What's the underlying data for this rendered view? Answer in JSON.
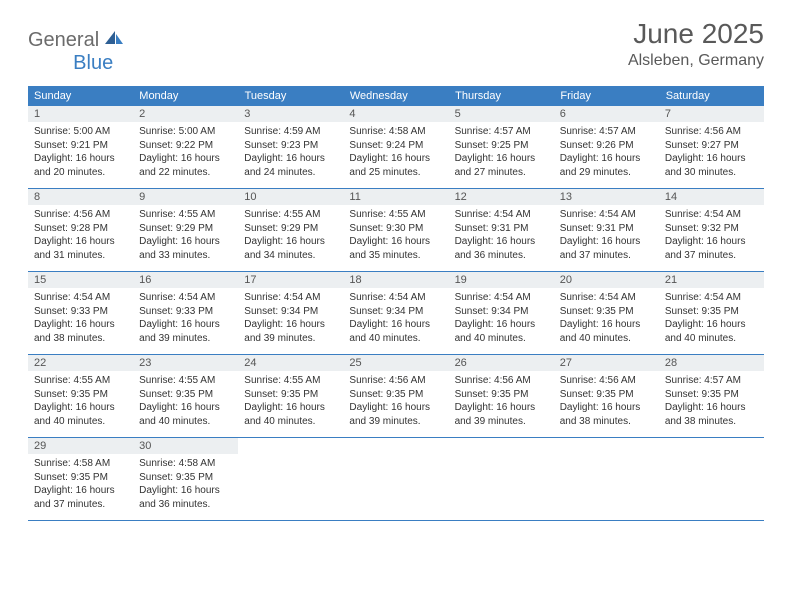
{
  "logo": {
    "text1": "General",
    "text2": "Blue"
  },
  "title": "June 2025",
  "location": "Alsleben, Germany",
  "colors": {
    "header_bg": "#3a7ec2",
    "header_text": "#ffffff",
    "daynum_bg": "#eceff1",
    "border": "#3a7ec2",
    "title_color": "#595959",
    "logo_gray": "#6b6b6b",
    "logo_blue": "#3a7ec2"
  },
  "weekdays": [
    "Sunday",
    "Monday",
    "Tuesday",
    "Wednesday",
    "Thursday",
    "Friday",
    "Saturday"
  ],
  "days": [
    {
      "n": "1",
      "sr": "5:00 AM",
      "ss": "9:21 PM",
      "dl": "16 hours and 20 minutes."
    },
    {
      "n": "2",
      "sr": "5:00 AM",
      "ss": "9:22 PM",
      "dl": "16 hours and 22 minutes."
    },
    {
      "n": "3",
      "sr": "4:59 AM",
      "ss": "9:23 PM",
      "dl": "16 hours and 24 minutes."
    },
    {
      "n": "4",
      "sr": "4:58 AM",
      "ss": "9:24 PM",
      "dl": "16 hours and 25 minutes."
    },
    {
      "n": "5",
      "sr": "4:57 AM",
      "ss": "9:25 PM",
      "dl": "16 hours and 27 minutes."
    },
    {
      "n": "6",
      "sr": "4:57 AM",
      "ss": "9:26 PM",
      "dl": "16 hours and 29 minutes."
    },
    {
      "n": "7",
      "sr": "4:56 AM",
      "ss": "9:27 PM",
      "dl": "16 hours and 30 minutes."
    },
    {
      "n": "8",
      "sr": "4:56 AM",
      "ss": "9:28 PM",
      "dl": "16 hours and 31 minutes."
    },
    {
      "n": "9",
      "sr": "4:55 AM",
      "ss": "9:29 PM",
      "dl": "16 hours and 33 minutes."
    },
    {
      "n": "10",
      "sr": "4:55 AM",
      "ss": "9:29 PM",
      "dl": "16 hours and 34 minutes."
    },
    {
      "n": "11",
      "sr": "4:55 AM",
      "ss": "9:30 PM",
      "dl": "16 hours and 35 minutes."
    },
    {
      "n": "12",
      "sr": "4:54 AM",
      "ss": "9:31 PM",
      "dl": "16 hours and 36 minutes."
    },
    {
      "n": "13",
      "sr": "4:54 AM",
      "ss": "9:31 PM",
      "dl": "16 hours and 37 minutes."
    },
    {
      "n": "14",
      "sr": "4:54 AM",
      "ss": "9:32 PM",
      "dl": "16 hours and 37 minutes."
    },
    {
      "n": "15",
      "sr": "4:54 AM",
      "ss": "9:33 PM",
      "dl": "16 hours and 38 minutes."
    },
    {
      "n": "16",
      "sr": "4:54 AM",
      "ss": "9:33 PM",
      "dl": "16 hours and 39 minutes."
    },
    {
      "n": "17",
      "sr": "4:54 AM",
      "ss": "9:34 PM",
      "dl": "16 hours and 39 minutes."
    },
    {
      "n": "18",
      "sr": "4:54 AM",
      "ss": "9:34 PM",
      "dl": "16 hours and 40 minutes."
    },
    {
      "n": "19",
      "sr": "4:54 AM",
      "ss": "9:34 PM",
      "dl": "16 hours and 40 minutes."
    },
    {
      "n": "20",
      "sr": "4:54 AM",
      "ss": "9:35 PM",
      "dl": "16 hours and 40 minutes."
    },
    {
      "n": "21",
      "sr": "4:54 AM",
      "ss": "9:35 PM",
      "dl": "16 hours and 40 minutes."
    },
    {
      "n": "22",
      "sr": "4:55 AM",
      "ss": "9:35 PM",
      "dl": "16 hours and 40 minutes."
    },
    {
      "n": "23",
      "sr": "4:55 AM",
      "ss": "9:35 PM",
      "dl": "16 hours and 40 minutes."
    },
    {
      "n": "24",
      "sr": "4:55 AM",
      "ss": "9:35 PM",
      "dl": "16 hours and 40 minutes."
    },
    {
      "n": "25",
      "sr": "4:56 AM",
      "ss": "9:35 PM",
      "dl": "16 hours and 39 minutes."
    },
    {
      "n": "26",
      "sr": "4:56 AM",
      "ss": "9:35 PM",
      "dl": "16 hours and 39 minutes."
    },
    {
      "n": "27",
      "sr": "4:56 AM",
      "ss": "9:35 PM",
      "dl": "16 hours and 38 minutes."
    },
    {
      "n": "28",
      "sr": "4:57 AM",
      "ss": "9:35 PM",
      "dl": "16 hours and 38 minutes."
    },
    {
      "n": "29",
      "sr": "4:58 AM",
      "ss": "9:35 PM",
      "dl": "16 hours and 37 minutes."
    },
    {
      "n": "30",
      "sr": "4:58 AM",
      "ss": "9:35 PM",
      "dl": "16 hours and 36 minutes."
    }
  ],
  "labels": {
    "sunrise": "Sunrise: ",
    "sunset": "Sunset: ",
    "daylight": "Daylight: "
  }
}
